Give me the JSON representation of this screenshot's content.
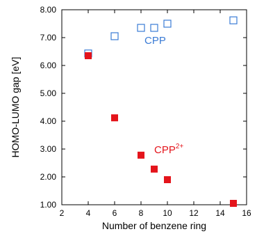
{
  "chart_data": {
    "type": "scatter",
    "xlabel": "Number of benzene ring",
    "ylabel": "HOMO-LUMO gap [eV]",
    "xlim": [
      2,
      16
    ],
    "ylim": [
      1.0,
      8.0
    ],
    "x_ticks": [
      "2",
      "4",
      "6",
      "8",
      "10",
      "12",
      "14",
      "16"
    ],
    "y_ticks": [
      "1.00",
      "2.00",
      "3.00",
      "4.00",
      "5.00",
      "6.00",
      "7.00",
      "8.00"
    ],
    "grid": false,
    "series": [
      {
        "name": "CPP",
        "marker": "open-square",
        "color": "#3a7bd5",
        "points": [
          {
            "x": 4,
            "y": 6.43
          },
          {
            "x": 6,
            "y": 7.05
          },
          {
            "x": 8,
            "y": 7.35
          },
          {
            "x": 9,
            "y": 7.35
          },
          {
            "x": 10,
            "y": 7.5
          },
          {
            "x": 15,
            "y": 7.62
          }
        ]
      },
      {
        "name": "CPP",
        "name_superscript": "2+",
        "marker": "filled-square",
        "color": "#e4141b",
        "points": [
          {
            "x": 4,
            "y": 6.35
          },
          {
            "x": 6,
            "y": 4.12
          },
          {
            "x": 8,
            "y": 2.78
          },
          {
            "x": 9,
            "y": 2.28
          },
          {
            "x": 10,
            "y": 1.9
          },
          {
            "x": 15,
            "y": 1.05
          }
        ]
      }
    ]
  }
}
